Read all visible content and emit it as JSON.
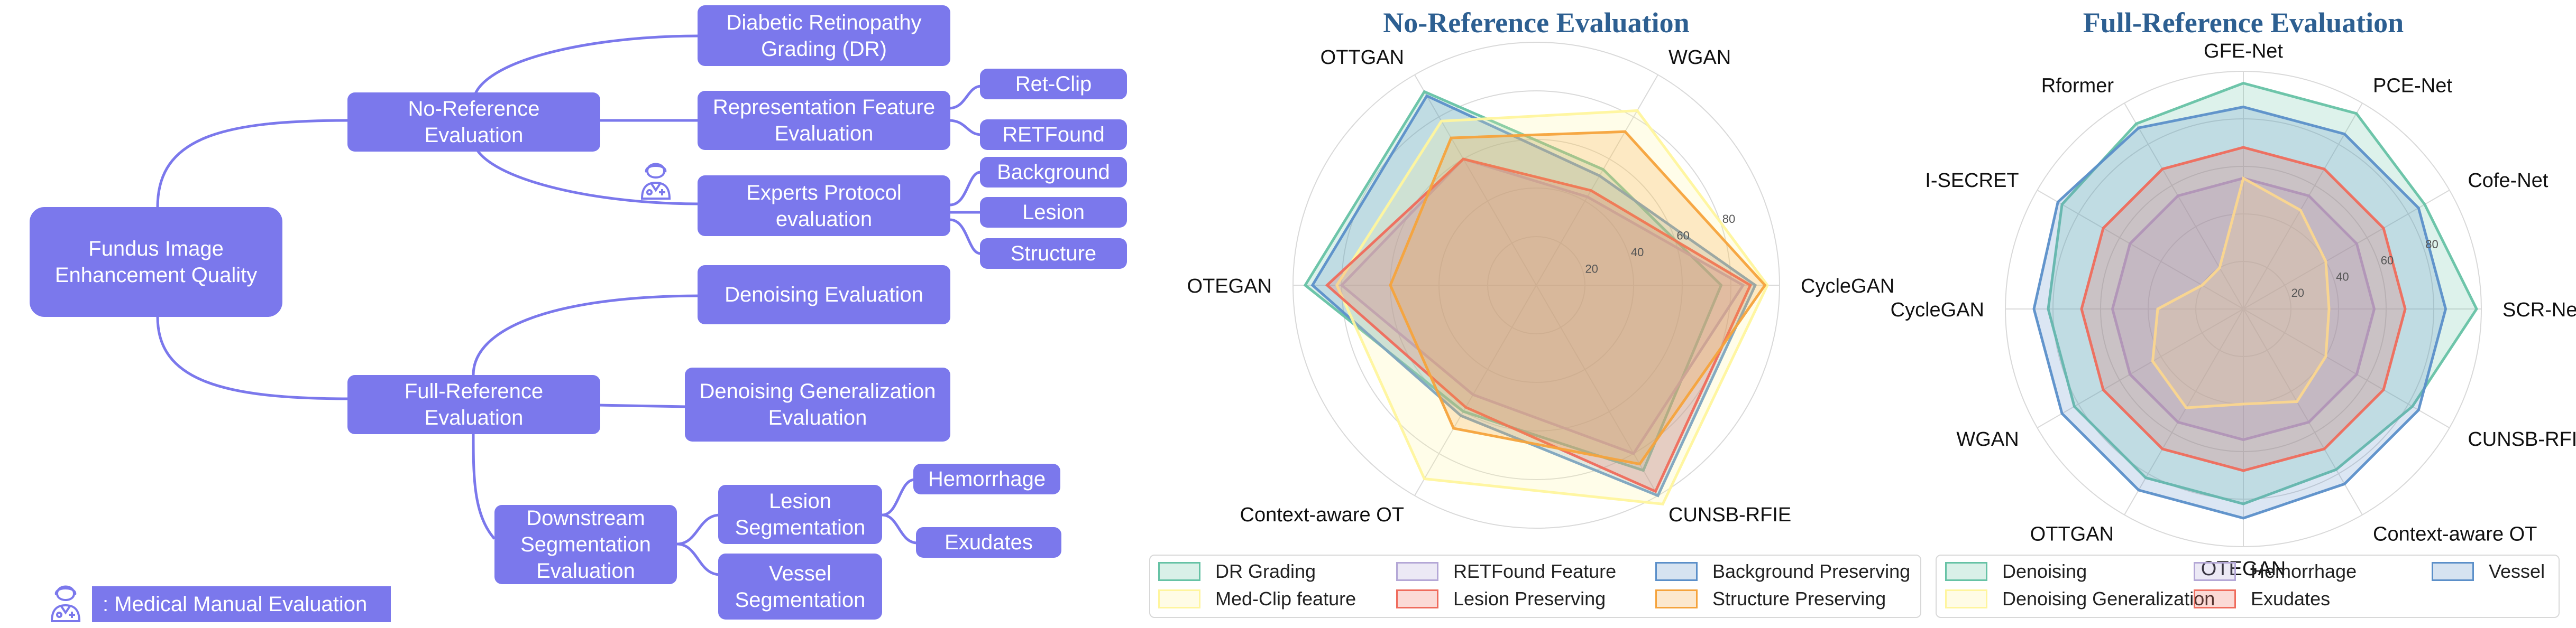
{
  "mindmap": {
    "root": "Fundus Image\nEnhancement Quality",
    "no_reference": "No-Reference\nEvaluation",
    "dr_grading": "Diabetic Retinopathy\nGrading (DR)",
    "representation": "Representation Feature\nEvaluation",
    "ret_clip": "Ret-Clip",
    "retfound": "RETFound",
    "experts": "Experts Protocol\nevaluation",
    "background": "Background",
    "lesion": "Lesion",
    "structure": "Structure",
    "full_reference": "Full-Reference\nEvaluation",
    "denoising": "Denoising Evaluation",
    "denoising_gen": "Denoising Generalization\nEvaluation",
    "downstream": "Downstream\nSegmentation\nEvaluation",
    "lesion_seg": "Lesion\nSegmentation",
    "vessel_seg": "Vessel\nSegmentation",
    "hemorrhage": "Hemorrhage",
    "exudates": "Exudates",
    "legend_text": ": Medical  Manual Evaluation",
    "node_color": "#7b78ec",
    "line_color": "#7b78ec",
    "icon": "doctor-icon"
  },
  "chart_data": [
    {
      "type": "radar",
      "title": "No-Reference Evaluation",
      "categories": [
        "OTTGAN",
        "WGAN",
        "CycleGAN",
        "CUNSB-RFIE",
        "Context-aware OT",
        "OTEGAN"
      ],
      "ticks": [
        "20",
        "40",
        "60",
        "80"
      ],
      "rmax": 100,
      "grid": true,
      "legend_position": "bottom",
      "legend_columns": 3,
      "series": [
        {
          "name": "DR Grading",
          "color": "#66c2a5",
          "values": [
            92,
            55,
            76,
            88,
            60,
            95
          ]
        },
        {
          "name": "RETFound Feature",
          "color": "#b4a7d6",
          "values": [
            60,
            42,
            85,
            80,
            52,
            80
          ]
        },
        {
          "name": "Background Preserving",
          "color": "#5b8fc9",
          "values": [
            90,
            52,
            90,
            100,
            62,
            92
          ]
        },
        {
          "name": "Med-Clip feature",
          "color": "#fff59d",
          "values": [
            78,
            83,
            95,
            104,
            92,
            82
          ]
        },
        {
          "name": "Lesion Preserving",
          "color": "#ef6b5c",
          "values": [
            60,
            45,
            88,
            98,
            58,
            86
          ]
        },
        {
          "name": "Structure Preserving",
          "color": "#f5a33c",
          "values": [
            70,
            73,
            94,
            85,
            68,
            60
          ]
        }
      ]
    },
    {
      "type": "radar",
      "title": "Full-Reference Evaluation",
      "categories": [
        "GFE-Net",
        "PCE-Net",
        "Cofe-Net",
        "SCR-Net",
        "CUNSB-RFIE",
        "Context-aware OT",
        "OTEGAN",
        "OTTGAN",
        "WGAN",
        "CycleGAN",
        "I-SECRET",
        "Rformer"
      ],
      "ticks": [
        "20",
        "40",
        "60",
        "80"
      ],
      "rmax": 100,
      "grid": true,
      "legend_position": "bottom",
      "legend_columns": 3,
      "series": [
        {
          "name": "Denoising",
          "color": "#66c2a5",
          "values": [
            95,
            95,
            88,
            98,
            82,
            78,
            82,
            82,
            82,
            82,
            88,
            90
          ]
        },
        {
          "name": "Hemorrhage",
          "color": "#b4a7d6",
          "values": [
            55,
            55,
            55,
            55,
            55,
            55,
            55,
            55,
            55,
            55,
            55,
            55
          ]
        },
        {
          "name": "Vessel",
          "color": "#5b8fc9",
          "values": [
            85,
            85,
            85,
            85,
            85,
            85,
            88,
            88,
            88,
            88,
            90,
            88
          ]
        },
        {
          "name": "Denoising Generalization",
          "color": "#fff59d",
          "values": [
            55,
            48,
            40,
            36,
            40,
            45,
            40,
            48,
            44,
            36,
            20,
            20
          ]
        },
        {
          "name": "Exudates",
          "color": "#ef6b5c",
          "values": [
            68,
            68,
            68,
            68,
            68,
            68,
            68,
            68,
            68,
            68,
            68,
            68
          ]
        }
      ]
    }
  ]
}
